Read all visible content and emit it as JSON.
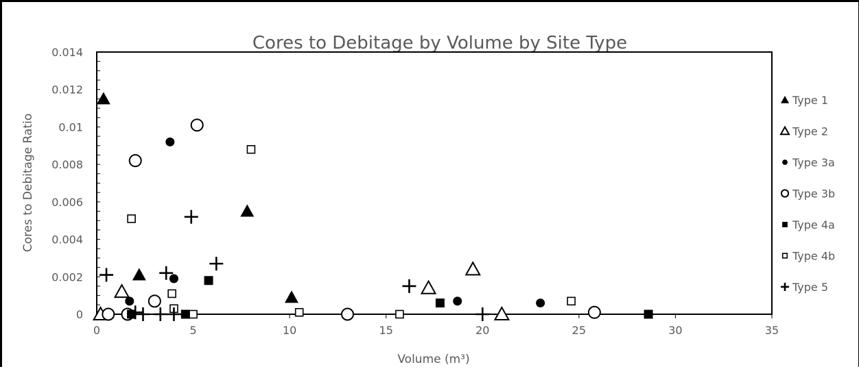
{
  "chart_data": {
    "type": "scatter",
    "title": "Cores to Debitage by Volume by Site Type",
    "xlabel": "Volume (m³)",
    "ylabel": "Cores to Debitage Ratio",
    "xlim": [
      0,
      35
    ],
    "ylim": [
      0,
      0.014
    ],
    "x_ticks": [
      "0",
      "5",
      "10",
      "15",
      "20",
      "25",
      "30",
      "35"
    ],
    "y_ticks": [
      "0",
      "0.002",
      "0.004",
      "0.006",
      "0.008",
      "0.01",
      "0.012",
      "0.014"
    ],
    "grid": false,
    "legend_position": "right",
    "series": [
      {
        "name": "Type 1",
        "marker": "triangle-filled",
        "points": [
          [
            0.35,
            0.0115
          ],
          [
            2.2,
            0.0021
          ],
          [
            7.8,
            0.0055
          ],
          [
            10.1,
            0.0009
          ]
        ]
      },
      {
        "name": "Type 2",
        "marker": "triangle-open",
        "points": [
          [
            0.2,
            0.0
          ],
          [
            1.3,
            0.0012
          ],
          [
            17.2,
            0.0014
          ],
          [
            19.5,
            0.0024
          ],
          [
            21.0,
            0.0
          ]
        ]
      },
      {
        "name": "Type 3a",
        "marker": "circle-filled",
        "points": [
          [
            1.7,
            0.0007
          ],
          [
            3.8,
            0.0092
          ],
          [
            4.0,
            0.0019
          ],
          [
            18.7,
            0.0007
          ],
          [
            23.0,
            0.0006
          ],
          [
            1.6,
            0.0
          ]
        ]
      },
      {
        "name": "Type 3b",
        "marker": "circle-open",
        "points": [
          [
            0.6,
            0.0
          ],
          [
            1.6,
            0.0
          ],
          [
            2.0,
            0.0082
          ],
          [
            3.0,
            0.0007
          ],
          [
            5.2,
            0.0101
          ],
          [
            13.0,
            0.0
          ],
          [
            25.8,
            0.0001
          ]
        ]
      },
      {
        "name": "Type 4a",
        "marker": "square-filled",
        "points": [
          [
            1.8,
            0.0
          ],
          [
            4.6,
            0.0
          ],
          [
            5.8,
            0.0018
          ],
          [
            17.8,
            0.0006
          ],
          [
            28.6,
            0.0
          ]
        ]
      },
      {
        "name": "Type 4b",
        "marker": "square-open",
        "points": [
          [
            1.8,
            0.0051
          ],
          [
            3.9,
            0.0011
          ],
          [
            4.0,
            0.0003
          ],
          [
            5.0,
            0.0
          ],
          [
            8.0,
            0.0088
          ],
          [
            10.5,
            0.0001
          ],
          [
            15.7,
            0.0
          ],
          [
            24.6,
            0.0007
          ]
        ]
      },
      {
        "name": "Type 5",
        "marker": "plus",
        "points": [
          [
            0.5,
            0.0021
          ],
          [
            2.0,
            0.0001
          ],
          [
            2.4,
            0.0
          ],
          [
            3.6,
            0.0022
          ],
          [
            3.3,
            0.0
          ],
          [
            4.0,
            0.0
          ],
          [
            4.9,
            0.0052
          ],
          [
            6.2,
            0.0027
          ],
          [
            16.2,
            0.0015
          ],
          [
            20.0,
            0.0
          ]
        ]
      }
    ]
  }
}
